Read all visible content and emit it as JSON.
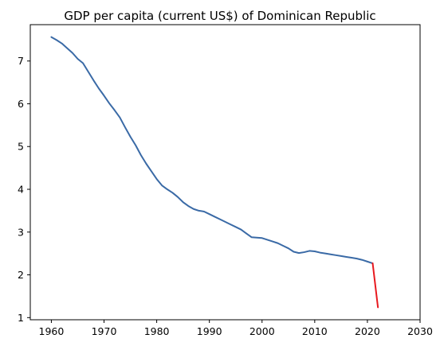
{
  "chart_data": {
    "type": "line",
    "title": "GDP per capita (current US$) of Dominican Republic",
    "xlabel": "",
    "ylabel": "",
    "xlim": [
      1956,
      2030
    ],
    "ylim": [
      0.95,
      7.85
    ],
    "x_ticks": [
      1960,
      1970,
      1980,
      1990,
      2000,
      2010,
      2020,
      2030
    ],
    "y_ticks": [
      1,
      2,
      3,
      4,
      5,
      6,
      7
    ],
    "grid": false,
    "series": [
      {
        "color": "#3a6aa6",
        "points": [
          [
            1960,
            7.56
          ],
          [
            1961,
            7.49
          ],
          [
            1962,
            7.41
          ],
          [
            1963,
            7.3
          ],
          [
            1964,
            7.19
          ],
          [
            1965,
            7.05
          ],
          [
            1966,
            6.95
          ],
          [
            1967,
            6.75
          ],
          [
            1968,
            6.55
          ],
          [
            1969,
            6.36
          ],
          [
            1970,
            6.19
          ],
          [
            1971,
            6.01
          ],
          [
            1972,
            5.85
          ],
          [
            1973,
            5.68
          ],
          [
            1974,
            5.45
          ],
          [
            1975,
            5.23
          ],
          [
            1976,
            5.03
          ],
          [
            1977,
            4.8
          ],
          [
            1978,
            4.6
          ],
          [
            1979,
            4.42
          ],
          [
            1980,
            4.24
          ],
          [
            1981,
            4.09
          ],
          [
            1982,
            4.0
          ],
          [
            1983,
            3.92
          ],
          [
            1984,
            3.82
          ],
          [
            1985,
            3.7
          ],
          [
            1986,
            3.61
          ],
          [
            1987,
            3.54
          ],
          [
            1988,
            3.5
          ],
          [
            1989,
            3.48
          ],
          [
            1990,
            3.42
          ],
          [
            1991,
            3.36
          ],
          [
            1992,
            3.3
          ],
          [
            1993,
            3.24
          ],
          [
            1994,
            3.18
          ],
          [
            1995,
            3.12
          ],
          [
            1996,
            3.06
          ],
          [
            1997,
            2.97
          ],
          [
            1998,
            2.88
          ],
          [
            1999,
            2.87
          ],
          [
            2000,
            2.86
          ],
          [
            2001,
            2.82
          ],
          [
            2002,
            2.78
          ],
          [
            2003,
            2.74
          ],
          [
            2004,
            2.68
          ],
          [
            2005,
            2.62
          ],
          [
            2006,
            2.54
          ],
          [
            2007,
            2.51
          ],
          [
            2008,
            2.53
          ],
          [
            2009,
            2.56
          ],
          [
            2010,
            2.55
          ],
          [
            2011,
            2.52
          ],
          [
            2012,
            2.5
          ],
          [
            2013,
            2.48
          ],
          [
            2014,
            2.46
          ],
          [
            2015,
            2.44
          ],
          [
            2016,
            2.42
          ],
          [
            2017,
            2.4
          ],
          [
            2018,
            2.38
          ],
          [
            2019,
            2.35
          ],
          [
            2020,
            2.31
          ],
          [
            2021,
            2.27
          ]
        ]
      },
      {
        "color": "#e8191f",
        "points": [
          [
            2021,
            2.27
          ],
          [
            2022,
            1.24
          ]
        ]
      }
    ]
  }
}
